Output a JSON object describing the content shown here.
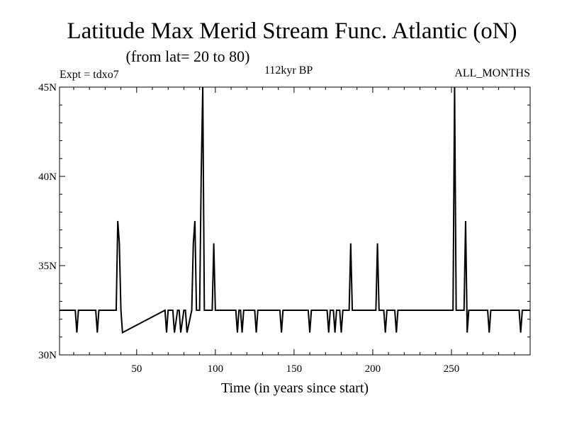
{
  "header": {
    "title": "Latitude Max Merid Stream Func. Atlantic (oN)",
    "subtitle": "(from lat= 20 to 80)",
    "expt": "Expt = tdxo7",
    "period": "112kyr BP",
    "months": "ALL_MONTHS"
  },
  "chart_data": {
    "type": "line",
    "title": "Latitude Max Merid Stream Func. Atlantic (oN)",
    "subtitle": "(from lat= 20 to 80)",
    "xlabel": "Time (in years since start)",
    "ylabel": "",
    "xlim": [
      1,
      300
    ],
    "ylim": [
      30,
      45
    ],
    "x_ticks": [
      50,
      100,
      150,
      200,
      250
    ],
    "x_tick_labels": [
      "50",
      "100",
      "150",
      "200",
      "250"
    ],
    "y_ticks": [
      30,
      35,
      40,
      45
    ],
    "y_tick_labels": [
      "30N",
      "35N",
      "40N",
      "45N"
    ],
    "grid": false,
    "series": [
      {
        "color": "#000000",
        "x": [
          1,
          11,
          12,
          13,
          24,
          25,
          26,
          37,
          38,
          39,
          40,
          41,
          68,
          69,
          70,
          73,
          74,
          76,
          77,
          78,
          80,
          81,
          82,
          85,
          86,
          87,
          88,
          89,
          90,
          91,
          92,
          93,
          94,
          95,
          98,
          99,
          100,
          113,
          114,
          115,
          116,
          117,
          118,
          119,
          125,
          126,
          127,
          141,
          142,
          143,
          159,
          160,
          161,
          171,
          172,
          173,
          175,
          176,
          177,
          179,
          180,
          181,
          185,
          186,
          187,
          188,
          202,
          203,
          204,
          207,
          208,
          209,
          214,
          215,
          216,
          250,
          251,
          252,
          253,
          254,
          258,
          259,
          260,
          261,
          262,
          273,
          274,
          275,
          293,
          294,
          295,
          300
        ],
        "y": [
          32.5,
          32.5,
          31.25,
          32.5,
          32.5,
          31.25,
          32.5,
          32.5,
          37.5,
          36.25,
          32.5,
          31.25,
          32.5,
          31.25,
          32.5,
          32.5,
          31.25,
          32.5,
          32.5,
          31.25,
          32.5,
          32.5,
          31.25,
          32.5,
          36.25,
          37.5,
          32.5,
          32.5,
          32.5,
          40.0,
          45.0,
          32.5,
          32.5,
          32.5,
          32.5,
          36.25,
          32.5,
          32.5,
          31.25,
          32.5,
          32.5,
          31.25,
          32.5,
          32.5,
          32.5,
          31.25,
          32.5,
          32.5,
          31.25,
          32.5,
          32.5,
          31.25,
          32.5,
          32.5,
          31.25,
          32.5,
          32.5,
          31.25,
          32.5,
          32.5,
          31.25,
          32.5,
          32.5,
          36.25,
          32.5,
          32.5,
          32.5,
          36.25,
          32.5,
          32.5,
          31.25,
          32.5,
          32.5,
          31.25,
          32.5,
          32.5,
          32.5,
          45.0,
          32.5,
          32.5,
          32.5,
          37.5,
          31.25,
          32.5,
          32.5,
          32.5,
          31.25,
          32.5,
          32.5,
          31.25,
          32.5,
          32.5
        ]
      }
    ]
  }
}
